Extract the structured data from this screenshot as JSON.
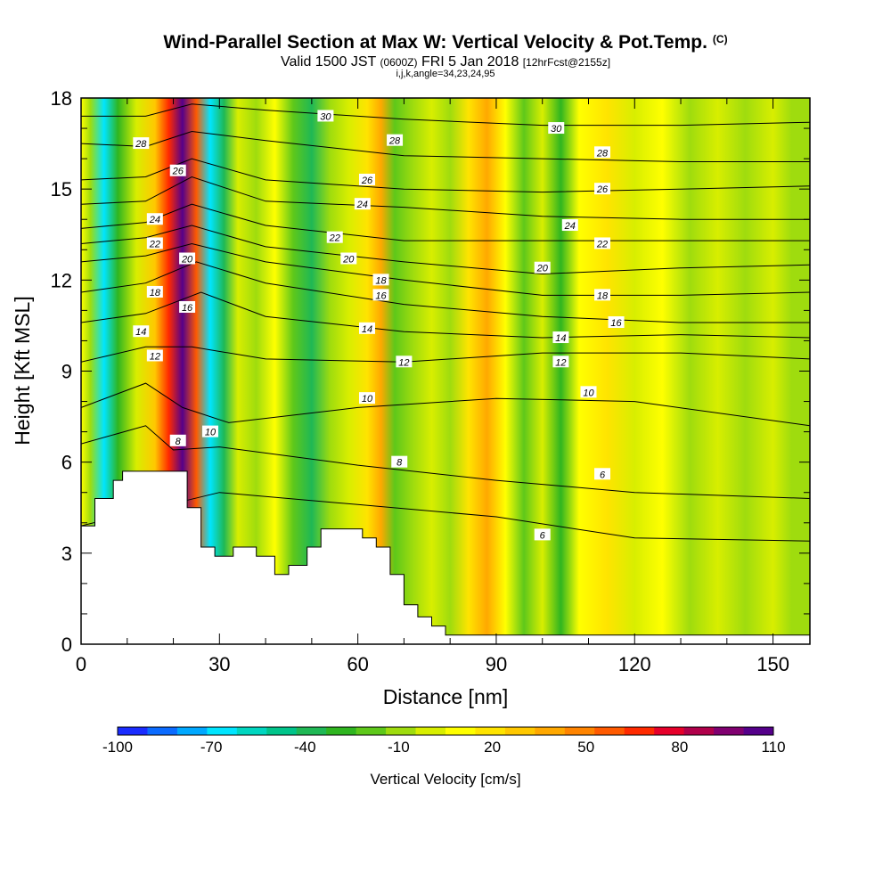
{
  "title": {
    "main": "Wind-Parallel Section at Max W: Vertical Velocity & Pot.Temp.",
    "unit_tag": "(C)",
    "valid_prefix": "Valid 1500 JST",
    "zulu": "(0600Z)",
    "date": "FRI 5 Jan 2018",
    "forecast": "[12hrFcst@2155z]",
    "indices": "i,j,k,angle=34,23,24,95"
  },
  "chart_data": {
    "type": "heatmap",
    "xlabel": "Distance [nm]",
    "ylabel": "Height [Kft MSL]",
    "xlim": [
      0,
      158
    ],
    "ylim": [
      0,
      18
    ],
    "x_ticks": [
      0,
      30,
      60,
      90,
      120,
      150
    ],
    "y_ticks": [
      0,
      3,
      6,
      9,
      12,
      15,
      18
    ],
    "colorbar": {
      "label": "Vertical Velocity [cm/s]",
      "tick_labels": [
        "-100",
        "-70",
        "-40",
        "-10",
        "20",
        "50",
        "80",
        "110"
      ],
      "tick_values": [
        -100,
        -70,
        -40,
        -10,
        20,
        50,
        80,
        110
      ],
      "range": [
        -100,
        110
      ],
      "colors": [
        "#1a2cff",
        "#0b6bff",
        "#00a8ff",
        "#00e5ff",
        "#00d6c0",
        "#00c48a",
        "#1fb855",
        "#2fb520",
        "#5ec81a",
        "#9fdc0e",
        "#d8ee00",
        "#ffff00",
        "#ffe400",
        "#ffc800",
        "#ffa800",
        "#ff8400",
        "#ff5a00",
        "#ff2a00",
        "#e6002a",
        "#b0004a",
        "#800070",
        "#55008a"
      ]
    },
    "vertical_velocity_bands": [
      {
        "x": 0,
        "w": 10
      },
      {
        "x": 2,
        "w": -10
      },
      {
        "x": 5,
        "w": -70
      },
      {
        "x": 8,
        "w": -30
      },
      {
        "x": 12,
        "w": 0
      },
      {
        "x": 16,
        "w": 30
      },
      {
        "x": 19,
        "w": 70
      },
      {
        "x": 22,
        "w": 110
      },
      {
        "x": 25,
        "w": 60
      },
      {
        "x": 28,
        "w": -70
      },
      {
        "x": 31,
        "w": -40
      },
      {
        "x": 34,
        "w": 0
      },
      {
        "x": 38,
        "w": -10
      },
      {
        "x": 42,
        "w": 10
      },
      {
        "x": 46,
        "w": -20
      },
      {
        "x": 50,
        "w": -40
      },
      {
        "x": 54,
        "w": -10
      },
      {
        "x": 58,
        "w": 0
      },
      {
        "x": 62,
        "w": 20
      },
      {
        "x": 65,
        "w": 40
      },
      {
        "x": 68,
        "w": -20
      },
      {
        "x": 72,
        "w": -10
      },
      {
        "x": 76,
        "w": 0
      },
      {
        "x": 80,
        "w": -10
      },
      {
        "x": 84,
        "w": 20
      },
      {
        "x": 88,
        "w": 40
      },
      {
        "x": 92,
        "w": 10
      },
      {
        "x": 96,
        "w": -20
      },
      {
        "x": 100,
        "w": 0
      },
      {
        "x": 104,
        "w": -30
      },
      {
        "x": 108,
        "w": 10
      },
      {
        "x": 114,
        "w": 20
      },
      {
        "x": 120,
        "w": 0
      },
      {
        "x": 126,
        "w": 10
      },
      {
        "x": 132,
        "w": -10
      },
      {
        "x": 138,
        "w": 0
      },
      {
        "x": 144,
        "w": -10
      },
      {
        "x": 150,
        "w": 0
      },
      {
        "x": 154,
        "w": -10
      },
      {
        "x": 158,
        "w": -10
      }
    ],
    "terrain": [
      {
        "x": 0,
        "h": 3.9
      },
      {
        "x": 3,
        "h": 4.8
      },
      {
        "x": 7,
        "h": 5.4
      },
      {
        "x": 9,
        "h": 5.7
      },
      {
        "x": 21,
        "h": 5.7
      },
      {
        "x": 23,
        "h": 4.5
      },
      {
        "x": 26,
        "h": 3.2
      },
      {
        "x": 29,
        "h": 2.9
      },
      {
        "x": 33,
        "h": 3.2
      },
      {
        "x": 38,
        "h": 2.9
      },
      {
        "x": 42,
        "h": 2.3
      },
      {
        "x": 45,
        "h": 2.6
      },
      {
        "x": 49,
        "h": 3.2
      },
      {
        "x": 52,
        "h": 3.8
      },
      {
        "x": 61,
        "h": 3.5
      },
      {
        "x": 64,
        "h": 3.2
      },
      {
        "x": 67,
        "h": 2.3
      },
      {
        "x": 70,
        "h": 1.3
      },
      {
        "x": 73,
        "h": 0.9
      },
      {
        "x": 76,
        "h": 0.6
      },
      {
        "x": 79,
        "h": 0.3
      },
      {
        "x": 84,
        "h": 0.3
      },
      {
        "x": 158,
        "h": 0.3
      }
    ],
    "theta_contours": [
      {
        "label": "6",
        "points": [
          [
            0,
            3.9
          ],
          [
            30,
            5.0
          ],
          [
            60,
            4.6
          ],
          [
            90,
            4.2
          ],
          [
            120,
            3.5
          ],
          [
            158,
            3.4
          ]
        ]
      },
      {
        "label": "8",
        "points": [
          [
            0,
            6.6
          ],
          [
            14,
            7.2
          ],
          [
            20,
            6.4
          ],
          [
            30,
            6.5
          ],
          [
            60,
            5.9
          ],
          [
            90,
            5.4
          ],
          [
            120,
            5.0
          ],
          [
            158,
            4.8
          ]
        ]
      },
      {
        "label": "10",
        "points": [
          [
            0,
            7.8
          ],
          [
            14,
            8.6
          ],
          [
            22,
            7.8
          ],
          [
            32,
            7.3
          ],
          [
            60,
            7.8
          ],
          [
            90,
            8.1
          ],
          [
            120,
            8.0
          ],
          [
            158,
            7.2
          ]
        ]
      },
      {
        "label": "12",
        "points": [
          [
            0,
            9.3
          ],
          [
            14,
            9.8
          ],
          [
            24,
            9.8
          ],
          [
            40,
            9.4
          ],
          [
            70,
            9.3
          ],
          [
            100,
            9.6
          ],
          [
            130,
            9.6
          ],
          [
            158,
            9.4
          ]
        ]
      },
      {
        "label": "14",
        "points": [
          [
            0,
            10.6
          ],
          [
            14,
            10.9
          ],
          [
            26,
            11.6
          ],
          [
            40,
            10.8
          ],
          [
            70,
            10.3
          ],
          [
            100,
            10.1
          ],
          [
            130,
            10.2
          ],
          [
            158,
            10.1
          ]
        ]
      },
      {
        "label": "16",
        "points": [
          [
            0,
            11.6
          ],
          [
            14,
            11.9
          ],
          [
            25,
            12.6
          ],
          [
            40,
            11.9
          ],
          [
            70,
            11.2
          ],
          [
            100,
            10.8
          ],
          [
            130,
            10.6
          ],
          [
            158,
            10.6
          ]
        ]
      },
      {
        "label": "18",
        "points": [
          [
            0,
            12.6
          ],
          [
            14,
            12.8
          ],
          [
            24,
            13.2
          ],
          [
            40,
            12.6
          ],
          [
            70,
            12.0
          ],
          [
            100,
            11.5
          ],
          [
            130,
            11.5
          ],
          [
            158,
            11.6
          ]
        ]
      },
      {
        "label": "20",
        "points": [
          [
            0,
            13.2
          ],
          [
            14,
            13.4
          ],
          [
            24,
            13.8
          ],
          [
            40,
            13.1
          ],
          [
            70,
            12.6
          ],
          [
            100,
            12.2
          ],
          [
            130,
            12.4
          ],
          [
            158,
            12.5
          ]
        ]
      },
      {
        "label": "22",
        "points": [
          [
            0,
            13.7
          ],
          [
            14,
            13.9
          ],
          [
            24,
            14.5
          ],
          [
            40,
            13.8
          ],
          [
            70,
            13.3
          ],
          [
            100,
            13.3
          ],
          [
            130,
            13.3
          ],
          [
            158,
            13.3
          ]
        ]
      },
      {
        "label": "24",
        "points": [
          [
            0,
            14.5
          ],
          [
            14,
            14.6
          ],
          [
            24,
            15.4
          ],
          [
            40,
            14.6
          ],
          [
            70,
            14.4
          ],
          [
            100,
            14.1
          ],
          [
            130,
            14.0
          ],
          [
            158,
            14.0
          ]
        ]
      },
      {
        "label": "26",
        "points": [
          [
            0,
            15.3
          ],
          [
            14,
            15.4
          ],
          [
            24,
            16.0
          ],
          [
            40,
            15.3
          ],
          [
            70,
            15.0
          ],
          [
            100,
            14.9
          ],
          [
            130,
            15.0
          ],
          [
            158,
            15.1
          ]
        ]
      },
      {
        "label": "28",
        "points": [
          [
            0,
            16.5
          ],
          [
            14,
            16.4
          ],
          [
            24,
            16.9
          ],
          [
            40,
            16.6
          ],
          [
            70,
            16.1
          ],
          [
            100,
            16.0
          ],
          [
            130,
            15.9
          ],
          [
            158,
            15.9
          ]
        ]
      },
      {
        "label": "30",
        "points": [
          [
            0,
            17.4
          ],
          [
            14,
            17.4
          ],
          [
            24,
            17.8
          ],
          [
            40,
            17.6
          ],
          [
            70,
            17.3
          ],
          [
            100,
            17.1
          ],
          [
            130,
            17.1
          ],
          [
            158,
            17.2
          ]
        ]
      }
    ],
    "contour_labels": [
      {
        "text": "28",
        "x": 13,
        "y": 16.5
      },
      {
        "text": "26",
        "x": 21,
        "y": 15.6
      },
      {
        "text": "24",
        "x": 16,
        "y": 14.0
      },
      {
        "text": "22",
        "x": 16,
        "y": 13.2
      },
      {
        "text": "20",
        "x": 23,
        "y": 12.7
      },
      {
        "text": "18",
        "x": 16,
        "y": 11.6
      },
      {
        "text": "16",
        "x": 23,
        "y": 11.1
      },
      {
        "text": "14",
        "x": 13,
        "y": 10.3
      },
      {
        "text": "12",
        "x": 16,
        "y": 9.5
      },
      {
        "text": "8",
        "x": 21,
        "y": 6.7
      },
      {
        "text": "10",
        "x": 28,
        "y": 7.0
      },
      {
        "text": "30",
        "x": 53,
        "y": 17.4
      },
      {
        "text": "28",
        "x": 68,
        "y": 16.6
      },
      {
        "text": "26",
        "x": 62,
        "y": 15.3
      },
      {
        "text": "24",
        "x": 61,
        "y": 14.5
      },
      {
        "text": "22",
        "x": 55,
        "y": 13.4
      },
      {
        "text": "20",
        "x": 58,
        "y": 12.7
      },
      {
        "text": "18",
        "x": 65,
        "y": 12.0
      },
      {
        "text": "16",
        "x": 65,
        "y": 11.5
      },
      {
        "text": "14",
        "x": 62,
        "y": 10.4
      },
      {
        "text": "12",
        "x": 70,
        "y": 9.3
      },
      {
        "text": "10",
        "x": 62,
        "y": 8.1
      },
      {
        "text": "8",
        "x": 69,
        "y": 6.0
      },
      {
        "text": "30",
        "x": 103,
        "y": 17.0
      },
      {
        "text": "28",
        "x": 113,
        "y": 16.2
      },
      {
        "text": "26",
        "x": 113,
        "y": 15.0
      },
      {
        "text": "24",
        "x": 106,
        "y": 13.8
      },
      {
        "text": "22",
        "x": 113,
        "y": 13.2
      },
      {
        "text": "20",
        "x": 100,
        "y": 12.4
      },
      {
        "text": "18",
        "x": 113,
        "y": 11.5
      },
      {
        "text": "16",
        "x": 116,
        "y": 10.6
      },
      {
        "text": "14",
        "x": 104,
        "y": 10.1
      },
      {
        "text": "12",
        "x": 104,
        "y": 9.3
      },
      {
        "text": "10",
        "x": 110,
        "y": 8.3
      },
      {
        "text": "6",
        "x": 113,
        "y": 5.6
      },
      {
        "text": "6",
        "x": 100,
        "y": 3.6
      }
    ]
  }
}
